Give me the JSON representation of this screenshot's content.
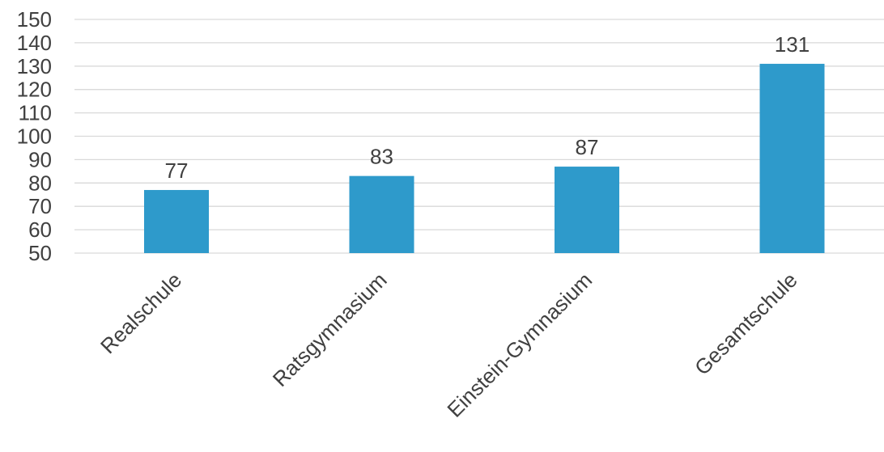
{
  "chart_data": {
    "type": "bar",
    "categories": [
      "Realschule",
      "Ratsgymnasium",
      "Einstein-Gymnasium",
      "Gesamtschule"
    ],
    "values": [
      77,
      83,
      87,
      131
    ],
    "data_labels": [
      "77",
      "83",
      "87",
      "131"
    ],
    "title": "",
    "xlabel": "",
    "ylabel": "",
    "ylim": [
      50,
      150
    ],
    "yticks": [
      50,
      60,
      70,
      80,
      90,
      100,
      110,
      120,
      130,
      140,
      150
    ],
    "ytick_labels": [
      "50",
      "60",
      "70",
      "80",
      "90",
      "100",
      "110",
      "120",
      "130",
      "140",
      "150"
    ],
    "grid": true,
    "legend": "none",
    "bar_color": "#2e9acb",
    "text_color": "#404040",
    "grid_color": "#d9d9d9"
  }
}
